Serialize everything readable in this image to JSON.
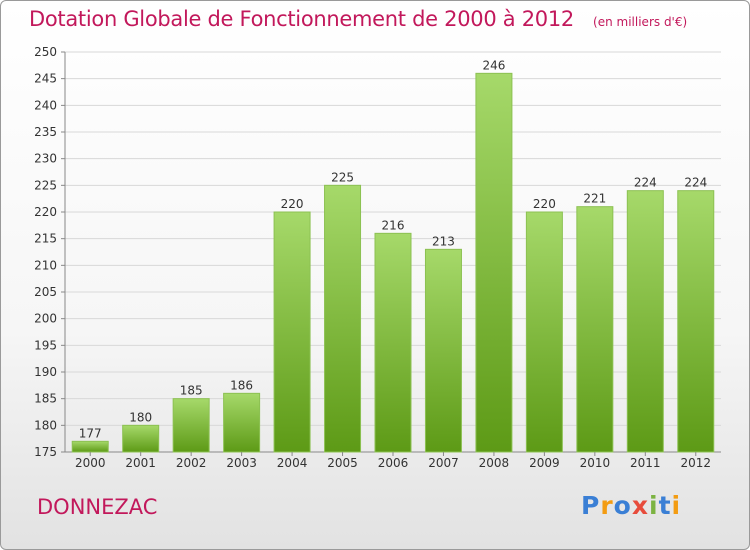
{
  "title": "Dotation Globale de Fonctionnement de 2000 à 2012",
  "subtitle": "(en milliers d'€)",
  "commune": "DONNEZAC",
  "logo": {
    "text": "Proxiti",
    "letters": [
      {
        "char": "P",
        "color": "#3a7fd5"
      },
      {
        "char": "r",
        "color": "#f39c12"
      },
      {
        "char": "o",
        "color": "#3a7fd5"
      },
      {
        "char": "x",
        "color": "#e74c3c"
      },
      {
        "char": "i",
        "color": "#7cb342"
      },
      {
        "char": "t",
        "color": "#3a7fd5"
      },
      {
        "char": "i",
        "color": "#f39c12"
      }
    ]
  },
  "colors": {
    "bar_top": "#a6d96a",
    "bar_bottom": "#5d9a16",
    "accent": "#c2185b",
    "grid": "#d8d8d8",
    "axis": "#888888",
    "label": "#333333"
  },
  "chart_data": {
    "type": "bar",
    "title": "Dotation Globale de Fonctionnement de 2000 à 2012",
    "subtitle": "(en milliers d'€)",
    "xlabel": "",
    "ylabel": "",
    "categories": [
      "2000",
      "2001",
      "2002",
      "2003",
      "2004",
      "2005",
      "2006",
      "2007",
      "2008",
      "2009",
      "2010",
      "2011",
      "2012"
    ],
    "values": [
      177,
      180,
      185,
      186,
      220,
      225,
      216,
      213,
      246,
      220,
      221,
      224,
      224
    ],
    "ylim": [
      175,
      250
    ],
    "yticks": [
      175,
      180,
      185,
      190,
      195,
      200,
      205,
      210,
      215,
      220,
      225,
      230,
      235,
      240,
      245,
      250
    ],
    "grid": true,
    "legend": "none",
    "data_labels": true
  }
}
